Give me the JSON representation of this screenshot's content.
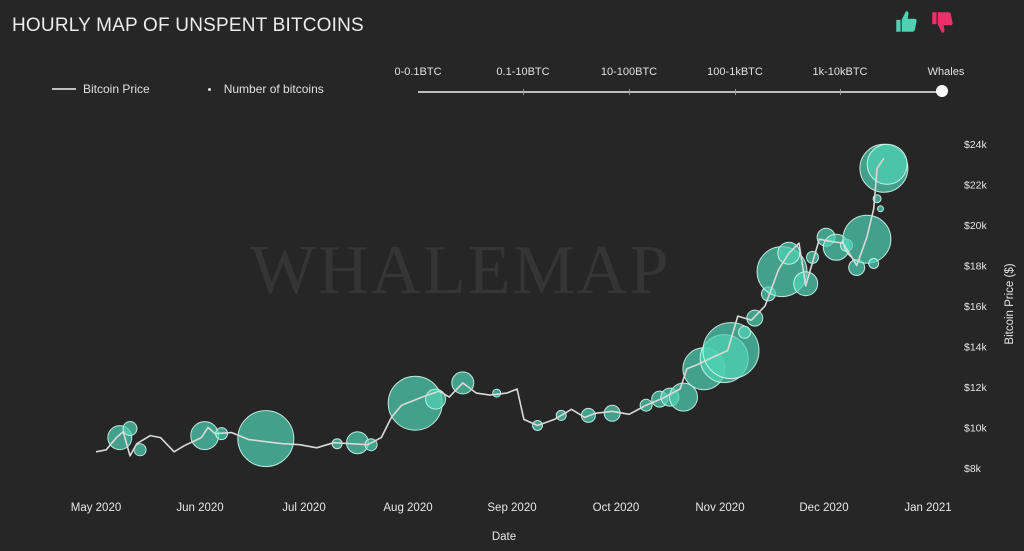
{
  "header": {
    "title": "HOURLY MAP OF UNSPENT BITCOINS"
  },
  "votes": {
    "up_icon": "thumbs-up-icon",
    "down_icon": "thumbs-down-icon",
    "up_color": "#4fd1b3",
    "down_color": "#e8306b"
  },
  "legend": {
    "price_label": "Bitcoin Price",
    "count_label": "Number of bitcoins"
  },
  "slider": {
    "options": [
      "0-0.1BTC",
      "0.1-10BTC",
      "10-100BTC",
      "100-1kBTC",
      "1k-10kBTC",
      "Whales"
    ],
    "selected": "Whales"
  },
  "watermark": "WHALEMAP",
  "chart_data": {
    "type": "scatter",
    "xlabel": "Date",
    "ylabel": "Bitcoin Price ($)",
    "x_ticks": [
      "May 2020",
      "Jun 2020",
      "Jul 2020",
      "Aug 2020",
      "Sep 2020",
      "Oct 2020",
      "Nov 2020",
      "Dec 2020",
      "Jan 2021"
    ],
    "y_ticks": [
      "$8k",
      "$10k",
      "$12k",
      "$14k",
      "$16k",
      "$18k",
      "$20k",
      "$22k",
      "$24k"
    ],
    "y_tick_values": [
      8000,
      10000,
      12000,
      14000,
      16000,
      18000,
      20000,
      22000,
      24000
    ],
    "ylim": [
      7500,
      25000
    ],
    "colors": {
      "bubble": "#4fd1b3",
      "line": "#d9d9d9"
    },
    "price": [
      [
        "2020-05-01",
        8800
      ],
      [
        "2020-05-04",
        8900
      ],
      [
        "2020-05-07",
        9500
      ],
      [
        "2020-05-09",
        9800
      ],
      [
        "2020-05-11",
        8600
      ],
      [
        "2020-05-13",
        9200
      ],
      [
        "2020-05-17",
        9600
      ],
      [
        "2020-05-20",
        9500
      ],
      [
        "2020-05-24",
        8800
      ],
      [
        "2020-05-27",
        9100
      ],
      [
        "2020-06-01",
        9500
      ],
      [
        "2020-06-03",
        10000
      ],
      [
        "2020-06-05",
        9700
      ],
      [
        "2020-06-10",
        9750
      ],
      [
        "2020-06-15",
        9400
      ],
      [
        "2020-06-20",
        9300
      ],
      [
        "2020-06-25",
        9200
      ],
      [
        "2020-06-30",
        9150
      ],
      [
        "2020-07-05",
        9000
      ],
      [
        "2020-07-10",
        9250
      ],
      [
        "2020-07-15",
        9200
      ],
      [
        "2020-07-20",
        9150
      ],
      [
        "2020-07-24",
        9500
      ],
      [
        "2020-07-27",
        10500
      ],
      [
        "2020-07-30",
        11100
      ],
      [
        "2020-08-02",
        11300
      ],
      [
        "2020-08-05",
        11500
      ],
      [
        "2020-08-10",
        11800
      ],
      [
        "2020-08-13",
        11500
      ],
      [
        "2020-08-17",
        12200
      ],
      [
        "2020-08-21",
        11700
      ],
      [
        "2020-08-25",
        11600
      ],
      [
        "2020-08-30",
        11700
      ],
      [
        "2020-09-02",
        11900
      ],
      [
        "2020-09-04",
        10400
      ],
      [
        "2020-09-08",
        10100
      ],
      [
        "2020-09-13",
        10400
      ],
      [
        "2020-09-18",
        10900
      ],
      [
        "2020-09-22",
        10500
      ],
      [
        "2020-09-25",
        10700
      ],
      [
        "2020-09-30",
        10800
      ],
      [
        "2020-10-05",
        10650
      ],
      [
        "2020-10-10",
        11100
      ],
      [
        "2020-10-15",
        11450
      ],
      [
        "2020-10-20",
        11900
      ],
      [
        "2020-10-22",
        12900
      ],
      [
        "2020-10-25",
        13100
      ],
      [
        "2020-10-30",
        13500
      ],
      [
        "2020-11-03",
        13800
      ],
      [
        "2020-11-06",
        15500
      ],
      [
        "2020-11-10",
        15300
      ],
      [
        "2020-11-14",
        16000
      ],
      [
        "2020-11-18",
        17800
      ],
      [
        "2020-11-21",
        18600
      ],
      [
        "2020-11-24",
        19100
      ],
      [
        "2020-11-26",
        17000
      ],
      [
        "2020-11-30",
        19300
      ],
      [
        "2020-12-03",
        19200
      ],
      [
        "2020-12-07",
        19100
      ],
      [
        "2020-12-11",
        18000
      ],
      [
        "2020-12-14",
        19400
      ],
      [
        "2020-12-16",
        20800
      ],
      [
        "2020-12-17",
        22800
      ],
      [
        "2020-12-19",
        23300
      ]
    ],
    "bubbles": [
      [
        "2020-05-08",
        9500,
        12
      ],
      [
        "2020-05-11",
        9950,
        7
      ],
      [
        "2020-05-14",
        8900,
        6
      ],
      [
        "2020-06-02",
        9600,
        14
      ],
      [
        "2020-06-07",
        9700,
        6
      ],
      [
        "2020-06-20",
        9450,
        28
      ],
      [
        "2020-07-11",
        9200,
        5
      ],
      [
        "2020-07-17",
        9250,
        11
      ],
      [
        "2020-07-21",
        9150,
        6
      ],
      [
        "2020-08-03",
        11200,
        27
      ],
      [
        "2020-08-09",
        11400,
        10
      ],
      [
        "2020-08-17",
        12200,
        11
      ],
      [
        "2020-08-27",
        11700,
        4
      ],
      [
        "2020-09-08",
        10100,
        5
      ],
      [
        "2020-09-15",
        10600,
        5
      ],
      [
        "2020-09-23",
        10600,
        7
      ],
      [
        "2020-09-30",
        10700,
        8
      ],
      [
        "2020-10-10",
        11100,
        6
      ],
      [
        "2020-10-14",
        11400,
        8
      ],
      [
        "2020-10-17",
        11500,
        9
      ],
      [
        "2020-10-21",
        11500,
        14
      ],
      [
        "2020-10-27",
        12900,
        21
      ],
      [
        "2020-11-02",
        13400,
        24
      ],
      [
        "2020-11-04",
        13800,
        28
      ],
      [
        "2020-11-08",
        14700,
        6
      ],
      [
        "2020-11-11",
        15400,
        8
      ],
      [
        "2020-11-15",
        16600,
        7
      ],
      [
        "2020-11-19",
        17700,
        25
      ],
      [
        "2020-11-21",
        18600,
        11
      ],
      [
        "2020-11-26",
        17100,
        12
      ],
      [
        "2020-11-28",
        18400,
        6
      ],
      [
        "2020-12-02",
        19400,
        9
      ],
      [
        "2020-12-05",
        18900,
        13
      ],
      [
        "2020-12-08",
        19000,
        6
      ],
      [
        "2020-12-11",
        17900,
        8
      ],
      [
        "2020-12-14",
        19300,
        24
      ],
      [
        "2020-12-16",
        18100,
        5
      ],
      [
        "2020-12-17",
        21300,
        4
      ],
      [
        "2020-12-18",
        20800,
        3
      ],
      [
        "2020-12-19",
        22800,
        24
      ],
      [
        "2020-12-20",
        23000,
        20
      ]
    ]
  }
}
